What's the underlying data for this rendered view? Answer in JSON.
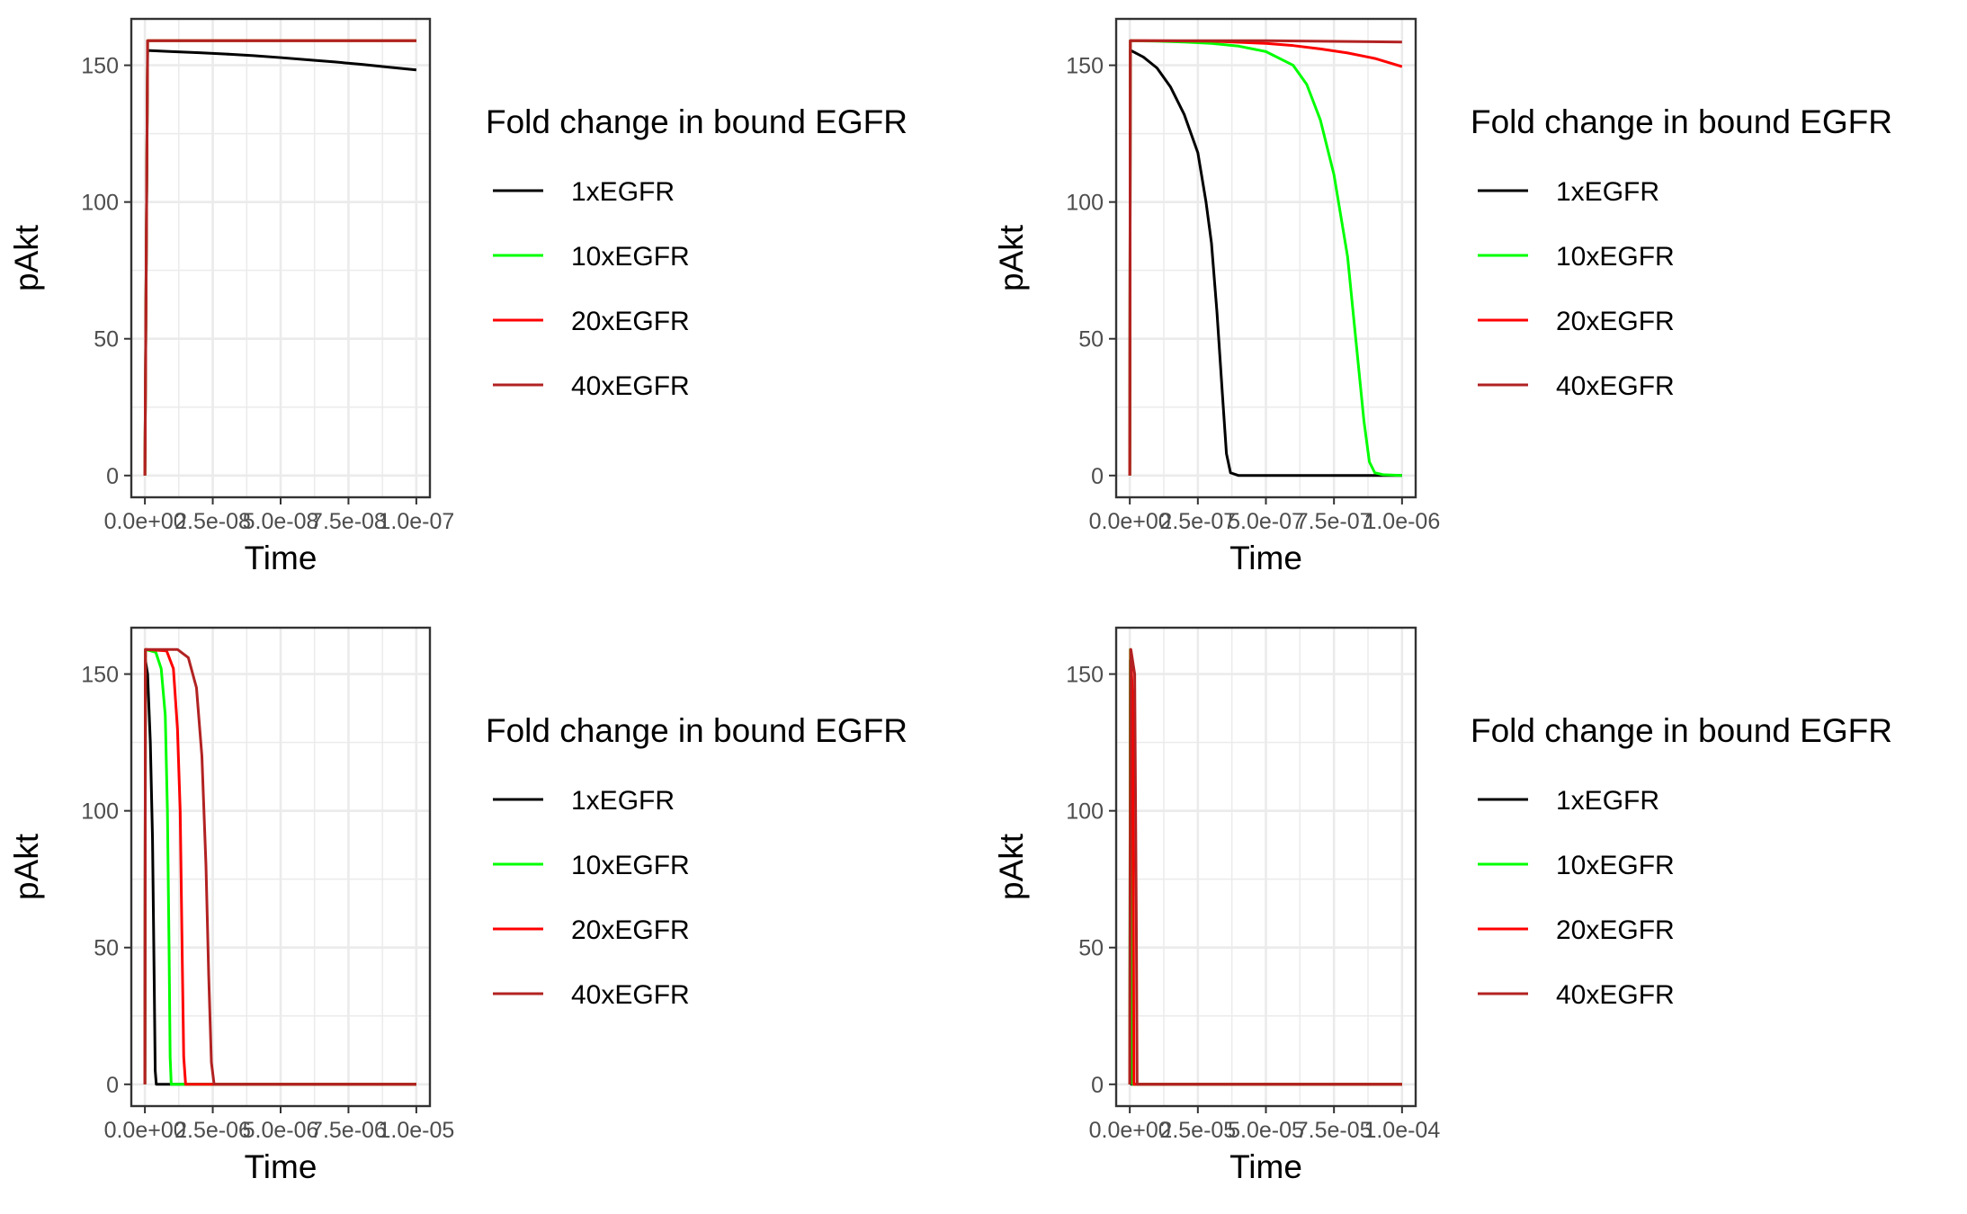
{
  "colors": {
    "1xEGFR": "#000000",
    "10xEGFR": "#00ff00",
    "20xEGFR": "#ff0000",
    "40xEGFR": "#b22222",
    "grid": "#ebebeb",
    "panel_border": "#333333",
    "tick_text": "#4d4d4d"
  },
  "chart_data": [
    {
      "type": "line",
      "xlabel": "Time",
      "ylabel": "pAkt",
      "xlim": [
        0,
        1e-07
      ],
      "ylim": [
        0,
        159
      ],
      "x_ticks": [
        0,
        2.5e-08,
        5e-08,
        7.5e-08,
        1e-07
      ],
      "x_tick_labels": [
        "0.0e+00",
        "2.5e-08",
        "5.0e-08",
        "7.5e-08",
        "1.0e-07"
      ],
      "y_ticks": [
        0,
        50,
        100,
        150
      ],
      "y_tick_labels": [
        "0",
        "50",
        "100",
        "150"
      ],
      "legend": {
        "title": "Fold change in bound EGFR",
        "position": "right"
      },
      "series": [
        {
          "name": "1xEGFR",
          "points": [
            [
              0,
              0
            ],
            [
              1e-09,
              155.4
            ],
            [
              1e-08,
              155.0
            ],
            [
              2e-08,
              154.6
            ],
            [
              3e-08,
              154.1
            ],
            [
              4e-08,
              153.5
            ],
            [
              5e-08,
              152.8
            ],
            [
              6e-08,
              152.0
            ],
            [
              7e-08,
              151.2
            ],
            [
              8e-08,
              150.3
            ],
            [
              9e-08,
              149.3
            ],
            [
              1e-07,
              148.3
            ]
          ]
        },
        {
          "name": "10xEGFR",
          "points": [
            [
              0,
              0
            ],
            [
              1e-09,
              159
            ],
            [
              1e-07,
              159
            ]
          ]
        },
        {
          "name": "20xEGFR",
          "points": [
            [
              0,
              0
            ],
            [
              1e-09,
              159
            ],
            [
              1e-07,
              159
            ]
          ]
        },
        {
          "name": "40xEGFR",
          "points": [
            [
              0,
              0
            ],
            [
              1e-09,
              159
            ],
            [
              1e-07,
              159
            ]
          ]
        }
      ]
    },
    {
      "type": "line",
      "xlabel": "Time",
      "ylabel": "pAkt",
      "xlim": [
        0,
        1e-06
      ],
      "ylim": [
        0,
        159
      ],
      "x_ticks": [
        0,
        2.5e-07,
        5e-07,
        7.5e-07,
        1e-06
      ],
      "x_tick_labels": [
        "0.0e+00",
        "2.5e-07",
        "5.0e-07",
        "7.5e-07",
        "1.0e-06"
      ],
      "y_ticks": [
        0,
        50,
        100,
        150
      ],
      "y_tick_labels": [
        "0",
        "50",
        "100",
        "150"
      ],
      "legend": {
        "title": "Fold change in bound EGFR",
        "position": "right"
      },
      "series": [
        {
          "name": "1xEGFR",
          "points": [
            [
              0,
              0
            ],
            [
              2e-09,
              155.5
            ],
            [
              5e-08,
              153
            ],
            [
              1e-07,
              149
            ],
            [
              1.5e-07,
              142
            ],
            [
              2e-07,
              132
            ],
            [
              2.5e-07,
              118
            ],
            [
              2.8e-07,
              100
            ],
            [
              3e-07,
              85
            ],
            [
              3.2e-07,
              60
            ],
            [
              3.4e-07,
              30
            ],
            [
              3.55e-07,
              8
            ],
            [
              3.7e-07,
              1
            ],
            [
              4e-07,
              0
            ],
            [
              1e-06,
              0
            ]
          ]
        },
        {
          "name": "10xEGFR",
          "points": [
            [
              0,
              0
            ],
            [
              2e-09,
              159
            ],
            [
              1e-07,
              158.8
            ],
            [
              2e-07,
              158.5
            ],
            [
              3e-07,
              158
            ],
            [
              4e-07,
              157
            ],
            [
              5e-07,
              155
            ],
            [
              6e-07,
              150
            ],
            [
              6.5e-07,
              143
            ],
            [
              7e-07,
              130
            ],
            [
              7.5e-07,
              110
            ],
            [
              8e-07,
              80
            ],
            [
              8.3e-07,
              50
            ],
            [
              8.6e-07,
              20
            ],
            [
              8.8e-07,
              5
            ],
            [
              9e-07,
              1
            ],
            [
              9.3e-07,
              0.3
            ],
            [
              1e-06,
              0
            ]
          ]
        },
        {
          "name": "20xEGFR",
          "points": [
            [
              0,
              0
            ],
            [
              2e-09,
              159
            ],
            [
              3e-07,
              158.8
            ],
            [
              5e-07,
              158
            ],
            [
              6e-07,
              157.2
            ],
            [
              7e-07,
              156
            ],
            [
              8e-07,
              154.5
            ],
            [
              9e-07,
              152.5
            ],
            [
              1e-06,
              149.5
            ]
          ]
        },
        {
          "name": "40xEGFR",
          "points": [
            [
              0,
              0
            ],
            [
              2e-09,
              159
            ],
            [
              5e-07,
              159
            ],
            [
              1e-06,
              158.5
            ]
          ]
        }
      ]
    },
    {
      "type": "line",
      "xlabel": "Time",
      "ylabel": "pAkt",
      "xlim": [
        0,
        1e-05
      ],
      "ylim": [
        0,
        159
      ],
      "x_ticks": [
        0,
        2.5e-06,
        5e-06,
        7.5e-06,
        1e-05
      ],
      "x_tick_labels": [
        "0.0e+00",
        "2.5e-06",
        "5.0e-06",
        "7.5e-06",
        "1.0e-05"
      ],
      "y_ticks": [
        0,
        50,
        100,
        150
      ],
      "y_tick_labels": [
        "0",
        "50",
        "100",
        "150"
      ],
      "legend": {
        "title": "Fold change in bound EGFR",
        "position": "right"
      },
      "series": [
        {
          "name": "1xEGFR",
          "points": [
            [
              0,
              0
            ],
            [
              2e-08,
              155
            ],
            [
              1e-07,
              150
            ],
            [
              2e-07,
              125
            ],
            [
              2.8e-07,
              90
            ],
            [
              3.4e-07,
              40
            ],
            [
              3.8e-07,
              5
            ],
            [
              4.2e-07,
              0
            ],
            [
              1e-05,
              0
            ]
          ]
        },
        {
          "name": "10xEGFR",
          "points": [
            [
              0,
              0
            ],
            [
              2e-08,
              159
            ],
            [
              4e-07,
              158
            ],
            [
              6e-07,
              152
            ],
            [
              7.5e-07,
              135
            ],
            [
              8.3e-07,
              100
            ],
            [
              8.9e-07,
              50
            ],
            [
              9.3e-07,
              10
            ],
            [
              9.7e-07,
              0
            ],
            [
              1e-05,
              0
            ]
          ]
        },
        {
          "name": "20xEGFR",
          "points": [
            [
              0,
              0
            ],
            [
              2e-08,
              159
            ],
            [
              8e-07,
              158.5
            ],
            [
              1.05e-06,
              152
            ],
            [
              1.2e-06,
              130
            ],
            [
              1.3e-06,
              100
            ],
            [
              1.37e-06,
              50
            ],
            [
              1.43e-06,
              10
            ],
            [
              1.5e-06,
              0
            ],
            [
              1e-05,
              0
            ]
          ]
        },
        {
          "name": "40xEGFR",
          "points": [
            [
              0,
              0
            ],
            [
              2e-08,
              159
            ],
            [
              1.2e-06,
              159
            ],
            [
              1.6e-06,
              156
            ],
            [
              1.9e-06,
              145
            ],
            [
              2.1e-06,
              120
            ],
            [
              2.25e-06,
              80
            ],
            [
              2.35e-06,
              40
            ],
            [
              2.45e-06,
              8
            ],
            [
              2.55e-06,
              0
            ],
            [
              1e-05,
              0
            ]
          ]
        }
      ]
    },
    {
      "type": "line",
      "xlabel": "Time",
      "ylabel": "pAkt",
      "xlim": [
        0,
        0.0001
      ],
      "ylim": [
        0,
        159
      ],
      "x_ticks": [
        0,
        2.5e-05,
        5e-05,
        7.5e-05,
        0.0001
      ],
      "x_tick_labels": [
        "0.0e+00",
        "2.5e-05",
        "5.0e-05",
        "7.5e-05",
        "1.0e-04"
      ],
      "y_ticks": [
        0,
        50,
        100,
        150
      ],
      "y_tick_labels": [
        "0",
        "50",
        "100",
        "150"
      ],
      "legend": {
        "title": "Fold change in bound EGFR",
        "position": "right"
      },
      "series": [
        {
          "name": "1xEGFR",
          "points": [
            [
              0,
              0
            ],
            [
              2e-07,
              155
            ],
            [
              4e-07,
              130
            ],
            [
              6e-07,
              0
            ],
            [
              0.0001,
              0
            ]
          ]
        },
        {
          "name": "10xEGFR",
          "points": [
            [
              0,
              0
            ],
            [
              2e-07,
              159
            ],
            [
              8e-07,
              140
            ],
            [
              1.1e-06,
              0
            ],
            [
              0.0001,
              0
            ]
          ]
        },
        {
          "name": "20xEGFR",
          "points": [
            [
              0,
              0
            ],
            [
              3e-07,
              159
            ],
            [
              1.1e-06,
              140
            ],
            [
              1.5e-06,
              0
            ],
            [
              0.0001,
              0
            ]
          ]
        },
        {
          "name": "40xEGFR",
          "points": [
            [
              0,
              0
            ],
            [
              4e-07,
              159
            ],
            [
              1.8e-06,
              150
            ],
            [
              2.4e-06,
              60
            ],
            [
              2.7e-06,
              0
            ],
            [
              0.0001,
              0
            ]
          ]
        }
      ]
    }
  ]
}
